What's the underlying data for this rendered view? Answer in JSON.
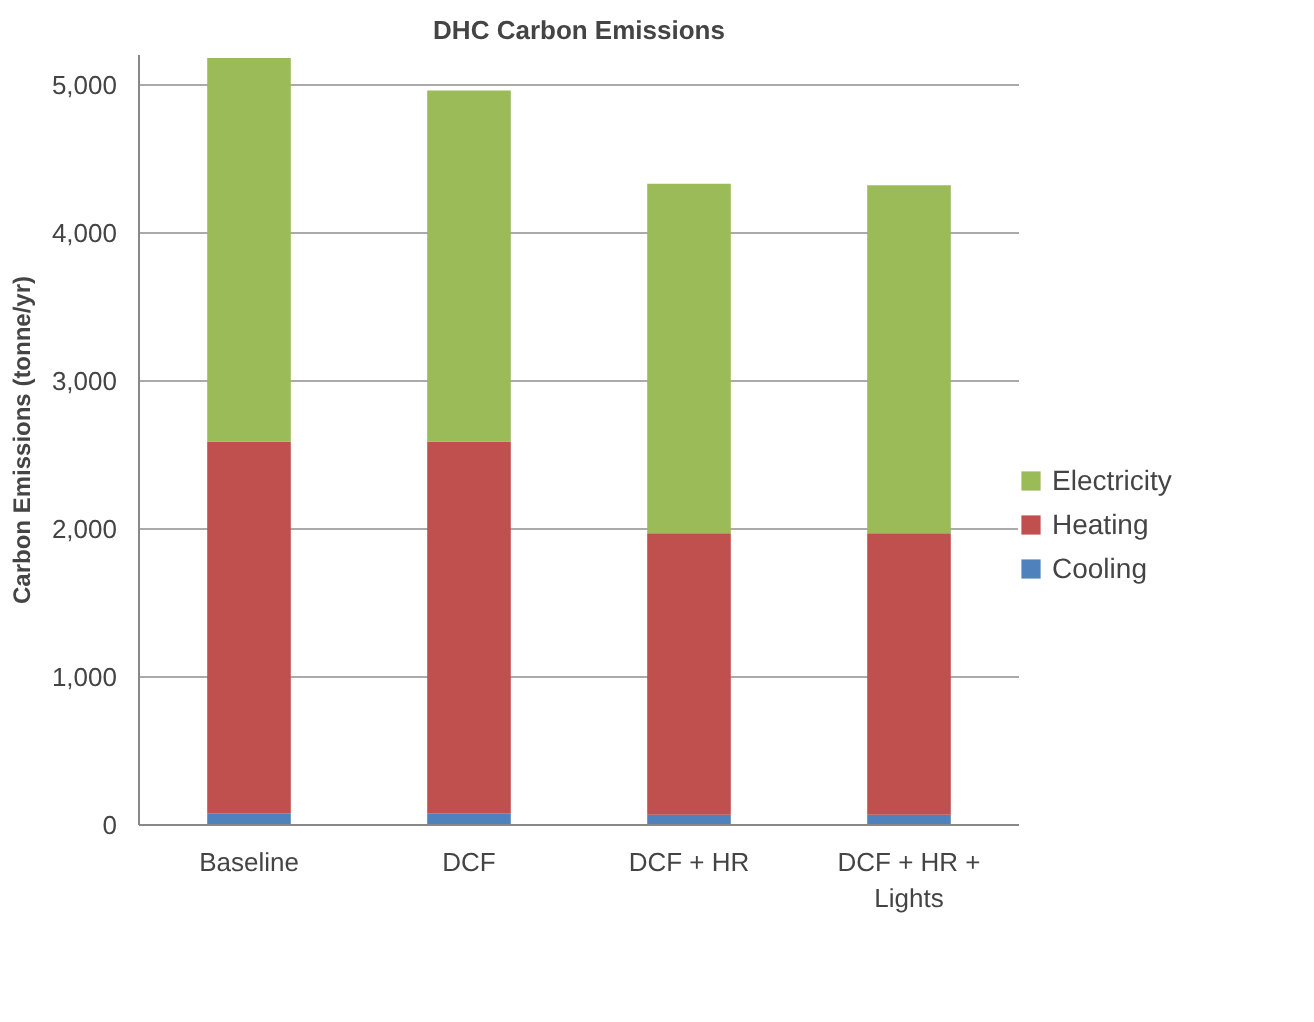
{
  "chart_data": {
    "type": "bar",
    "title": "DHC Carbon Emissions",
    "ylabel": "Carbon Emissions (tonne/yr)",
    "categories": [
      "Baseline",
      "DCF",
      "DCF + HR",
      "DCF + HR + Lights"
    ],
    "stacked": true,
    "series": [
      {
        "name": "Cooling",
        "color": "#4f81bd",
        "values": [
          80,
          80,
          70,
          70
        ]
      },
      {
        "name": "Heating",
        "color": "#c0504d",
        "values": [
          2510,
          2510,
          1900,
          1900
        ]
      },
      {
        "name": "Electricity",
        "color": "#9bbb59",
        "values": [
          2590,
          2370,
          2360,
          2350
        ]
      }
    ],
    "ylim": [
      0,
      5200
    ],
    "yticks": [
      {
        "value": 0,
        "label": "0"
      },
      {
        "value": 1000,
        "label": "1,000"
      },
      {
        "value": 2000,
        "label": "2,000"
      },
      {
        "value": 3000,
        "label": "3,000"
      },
      {
        "value": 4000,
        "label": "4,000"
      },
      {
        "value": 5000,
        "label": "5,000"
      }
    ],
    "grid": "y",
    "legend": "right"
  }
}
